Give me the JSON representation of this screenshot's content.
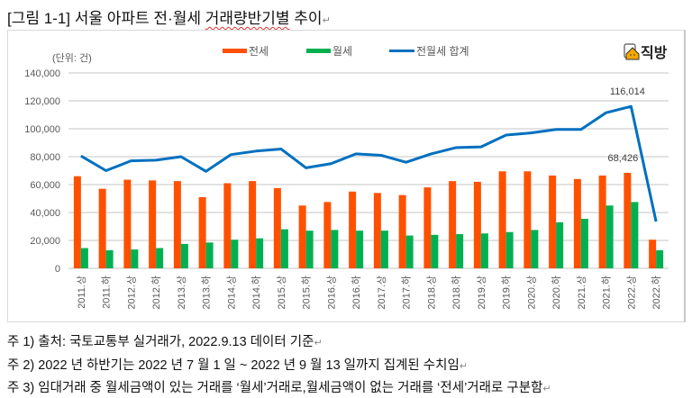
{
  "title": {
    "prefix": "[그림 1-1] 서울 아파트 전·월세 ",
    "underlined": "거래량반기별",
    "suffix": " 추이",
    "return_mark": "↵"
  },
  "logo": {
    "text": "직방",
    "icon": "house-logo-icon"
  },
  "colors": {
    "jeonse": "#FF5000",
    "wolse": "#00B050",
    "total": "#0070C0",
    "grid": "#d9d9d9"
  },
  "chart_data": {
    "type": "bar",
    "title": "",
    "unit_label": "(단위: 건)",
    "xlabel": "",
    "ylabel": "",
    "ylim": [
      0,
      140000
    ],
    "yticks": [
      0,
      20000,
      40000,
      60000,
      80000,
      100000,
      120000,
      140000
    ],
    "ytick_labels": [
      "0",
      "20,000",
      "40,000",
      "60,000",
      "80,000",
      "100,000",
      "120,000",
      "140,000"
    ],
    "grid": true,
    "legend_position": "top",
    "categories": [
      "2011.상",
      "2011.하",
      "2012.상",
      "2012.하",
      "2013.상",
      "2013.하",
      "2014.상",
      "2014.하",
      "2015.상",
      "2015.하",
      "2016.상",
      "2016.하",
      "2017.상",
      "2017.하",
      "2018.상",
      "2018.하",
      "2019.상",
      "2019.하",
      "2020.상",
      "2020.하",
      "2021.상",
      "2021.하",
      "2022.상",
      "2022.하"
    ],
    "series": [
      {
        "name": "전세",
        "type": "bar",
        "color": "#FF5000",
        "values": [
          66000,
          57000,
          63500,
          63000,
          62500,
          51000,
          61000,
          62500,
          57500,
          45000,
          47500,
          55000,
          54000,
          52500,
          58000,
          62500,
          62000,
          69500,
          69500,
          66500,
          64000,
          66500,
          68426,
          20500
        ]
      },
      {
        "name": "월세",
        "type": "bar",
        "color": "#00B050",
        "values": [
          14500,
          13000,
          13500,
          14500,
          17500,
          18500,
          20500,
          21500,
          28000,
          27000,
          27500,
          27000,
          27000,
          23500,
          24000,
          24500,
          25000,
          26000,
          27500,
          33000,
          35500,
          45000,
          47500,
          13000
        ]
      },
      {
        "name": "전월세 합계",
        "type": "line",
        "color": "#0070C0",
        "values": [
          80500,
          70000,
          77000,
          77500,
          80000,
          69500,
          81500,
          84000,
          85500,
          72000,
          75000,
          82000,
          81000,
          76000,
          82000,
          86500,
          87000,
          95500,
          97000,
          99500,
          99500,
          111500,
          116014,
          33500
        ]
      }
    ],
    "annotations": [
      {
        "text": "116,014",
        "series": "전월세 합계",
        "category": "2022.상"
      },
      {
        "text": "68,426",
        "series": "전세",
        "category": "2022.상"
      }
    ]
  },
  "notes": [
    "주 1) 출처: 국토교통부 실거래가, 2022.9.13  데이터 기준",
    "주 2) 2022 년 하반기는 2022 년 7 월 1 일 ~ 2022 년 9 월 13 일까지 집계된 수치임",
    "주 3) 임대거래 중 월세금액이 있는 거래를 ‘월세’거래로,월세금액이 없는 거래를 ‘전세’거래로 구분함"
  ]
}
